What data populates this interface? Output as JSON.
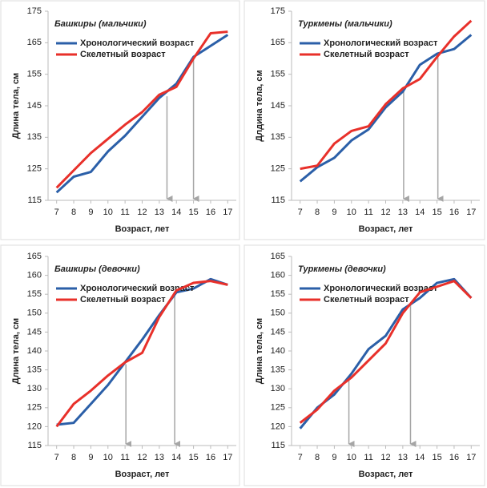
{
  "chart_data": [
    {
      "type": "line",
      "title": "Башкиры (мальчики)",
      "xlabel": "Возраст, лет",
      "ylabel": "Длина тела, см",
      "x": [
        7,
        8,
        9,
        10,
        11,
        12,
        13,
        14,
        15,
        16,
        17
      ],
      "xlim": [
        6.5,
        17.5
      ],
      "ylim": [
        115,
        175
      ],
      "yticks": [
        115,
        125,
        135,
        145,
        155,
        165,
        175
      ],
      "series": [
        {
          "name": "Хронологический возраст",
          "color": "#2b5fa8",
          "values": [
            117.5,
            122.5,
            124,
            130.5,
            135.5,
            141.5,
            147.5,
            152,
            160.5,
            164,
            167.5
          ]
        },
        {
          "name": "Скелетный возраст",
          "color": "#e8302a",
          "values": [
            119,
            124.5,
            130,
            134.5,
            139,
            143,
            148.5,
            151,
            160,
            168,
            168.5
          ]
        }
      ],
      "arrows": [
        {
          "x": 13.45,
          "from": 148
        },
        {
          "x": 15,
          "from": 160.5
        }
      ]
    },
    {
      "type": "line",
      "title": "Туркмены (мальчики)",
      "xlabel": "Возраст, лет",
      "ylabel": "Длдина тела, см",
      "x": [
        7,
        8,
        9,
        10,
        11,
        12,
        13,
        14,
        15,
        16,
        17
      ],
      "xlim": [
        6.5,
        17.5
      ],
      "ylim": [
        115,
        175
      ],
      "yticks": [
        115,
        125,
        135,
        145,
        155,
        165,
        175
      ],
      "series": [
        {
          "name": "Хронологический возраст",
          "color": "#2b5fa8",
          "values": [
            121,
            125.5,
            128.5,
            134,
            137.5,
            144.5,
            149.5,
            158,
            161.5,
            163,
            167.5
          ]
        },
        {
          "name": "Скелетный возраст",
          "color": "#e8302a",
          "values": [
            125,
            126,
            133,
            137,
            138.5,
            145.5,
            150.5,
            153.5,
            160.5,
            167,
            172
          ]
        }
      ],
      "arrows": [
        {
          "x": 13.05,
          "from": 150
        },
        {
          "x": 15.05,
          "from": 161
        }
      ]
    },
    {
      "type": "line",
      "title": "Башкиры (девочки)",
      "xlabel": "Возраст, лет",
      "ylabel": "Длина тела, см",
      "x": [
        7,
        8,
        9,
        10,
        11,
        12,
        13,
        14,
        15,
        16,
        17
      ],
      "xlim": [
        6.5,
        17.5
      ],
      "ylim": [
        115,
        165
      ],
      "yticks": [
        115,
        120,
        125,
        130,
        135,
        140,
        145,
        150,
        155,
        160,
        165
      ],
      "series": [
        {
          "name": "Хронологический возраст",
          "color": "#2b5fa8",
          "values": [
            120.5,
            121,
            126,
            131,
            137,
            143,
            149.5,
            155.5,
            156.5,
            159,
            157.5
          ]
        },
        {
          "name": "Скелетный возраст",
          "color": "#e8302a",
          "values": [
            120,
            126,
            129.5,
            133.5,
            137,
            139.5,
            149,
            156,
            158,
            158.5,
            157.5
          ]
        }
      ],
      "arrows": [
        {
          "x": 11.05,
          "from": 136.5
        },
        {
          "x": 13.9,
          "from": 155.5
        }
      ]
    },
    {
      "type": "line",
      "title": "Туркмены (девочки)",
      "xlabel": "Возраст, лет",
      "ylabel": "Длина тела, см",
      "x": [
        7,
        8,
        9,
        10,
        11,
        12,
        13,
        14,
        15,
        16,
        17
      ],
      "xlim": [
        6.5,
        17.5
      ],
      "ylim": [
        115,
        165
      ],
      "yticks": [
        115,
        120,
        125,
        130,
        135,
        140,
        145,
        150,
        155,
        160,
        165
      ],
      "series": [
        {
          "name": "Хронологический возраст",
          "color": "#2b5fa8",
          "values": [
            119.5,
            125,
            128.5,
            134,
            140.5,
            144,
            151,
            154,
            158,
            159,
            154
          ]
        },
        {
          "name": "Скелетный возраст",
          "color": "#e8302a",
          "values": [
            121,
            124.5,
            129.5,
            133,
            137.5,
            142,
            150,
            155.5,
            157,
            158.5,
            154
          ]
        }
      ],
      "arrows": [
        {
          "x": 9.85,
          "from": 133
        },
        {
          "x": 13.45,
          "from": 152.5
        }
      ]
    }
  ]
}
